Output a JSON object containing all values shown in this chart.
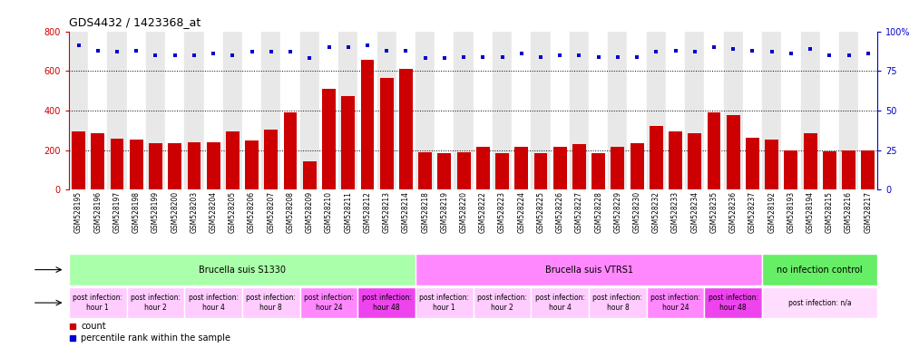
{
  "title": "GDS4432 / 1423368_at",
  "bar_labels": [
    "GSM528195",
    "GSM528196",
    "GSM528197",
    "GSM528198",
    "GSM528199",
    "GSM528200",
    "GSM528203",
    "GSM528204",
    "GSM528205",
    "GSM528206",
    "GSM528207",
    "GSM528208",
    "GSM528209",
    "GSM528210",
    "GSM528211",
    "GSM528212",
    "GSM528213",
    "GSM528214",
    "GSM528218",
    "GSM528219",
    "GSM528220",
    "GSM528222",
    "GSM528223",
    "GSM528224",
    "GSM528225",
    "GSM528226",
    "GSM528227",
    "GSM528228",
    "GSM528229",
    "GSM528230",
    "GSM528232",
    "GSM528233",
    "GSM528234",
    "GSM528235",
    "GSM528236",
    "GSM528237",
    "GSM528192",
    "GSM528193",
    "GSM528194",
    "GSM528215",
    "GSM528216",
    "GSM528217"
  ],
  "bar_values": [
    295,
    285,
    258,
    255,
    235,
    235,
    238,
    238,
    295,
    250,
    305,
    390,
    145,
    510,
    475,
    655,
    565,
    610,
    190,
    185,
    190,
    215,
    185,
    215,
    185,
    215,
    230,
    185,
    215,
    235,
    320,
    295,
    285,
    390,
    375,
    260,
    255,
    200,
    285,
    195,
    200,
    200
  ],
  "percentile_values": [
    91,
    88,
    87,
    88,
    85,
    85,
    85,
    86,
    85,
    87,
    87,
    87,
    83,
    90,
    90,
    91,
    88,
    88,
    83,
    83,
    84,
    84,
    84,
    86,
    84,
    85,
    85,
    84,
    84,
    84,
    87,
    88,
    87,
    90,
    89,
    88,
    87,
    86,
    89,
    85,
    85,
    86
  ],
  "bar_color": "#cc0000",
  "dot_color": "#0000cc",
  "ylim_left": [
    0,
    800
  ],
  "ylim_right": [
    0,
    100
  ],
  "yticks_left": [
    0,
    200,
    400,
    600,
    800
  ],
  "yticks_right": [
    0,
    25,
    50,
    75,
    100
  ],
  "infection_groups": [
    {
      "label": "Brucella suis S1330",
      "start": 0,
      "end": 18,
      "color": "#aaffaa"
    },
    {
      "label": "Brucella suis VTRS1",
      "start": 18,
      "end": 36,
      "color": "#ff88ff"
    },
    {
      "label": "no infection control",
      "start": 36,
      "end": 42,
      "color": "#66ee66"
    }
  ],
  "time_groups": [
    {
      "label": "post infection:\nhour 1",
      "start": 0,
      "end": 3,
      "color": "#ffccff"
    },
    {
      "label": "post infection:\nhour 2",
      "start": 3,
      "end": 6,
      "color": "#ffccff"
    },
    {
      "label": "post infection:\nhour 4",
      "start": 6,
      "end": 9,
      "color": "#ffccff"
    },
    {
      "label": "post infection:\nhour 8",
      "start": 9,
      "end": 12,
      "color": "#ffccff"
    },
    {
      "label": "post infection:\nhour 24",
      "start": 12,
      "end": 15,
      "color": "#ff88ff"
    },
    {
      "label": "post infection:\nhour 48",
      "start": 15,
      "end": 18,
      "color": "#ee44ee"
    },
    {
      "label": "post infection:\nhour 1",
      "start": 18,
      "end": 21,
      "color": "#ffccff"
    },
    {
      "label": "post infection:\nhour 2",
      "start": 21,
      "end": 24,
      "color": "#ffccff"
    },
    {
      "label": "post infection:\nhour 4",
      "start": 24,
      "end": 27,
      "color": "#ffccff"
    },
    {
      "label": "post infection:\nhour 8",
      "start": 27,
      "end": 30,
      "color": "#ffccff"
    },
    {
      "label": "post infection:\nhour 24",
      "start": 30,
      "end": 33,
      "color": "#ff88ff"
    },
    {
      "label": "post infection:\nhour 48",
      "start": 33,
      "end": 36,
      "color": "#ee44ee"
    },
    {
      "label": "post infection: n/a",
      "start": 36,
      "end": 42,
      "color": "#ffddff"
    }
  ],
  "legend_items": [
    {
      "label": "count",
      "color": "#cc0000"
    },
    {
      "label": "percentile rank within the sample",
      "color": "#0000cc"
    }
  ]
}
